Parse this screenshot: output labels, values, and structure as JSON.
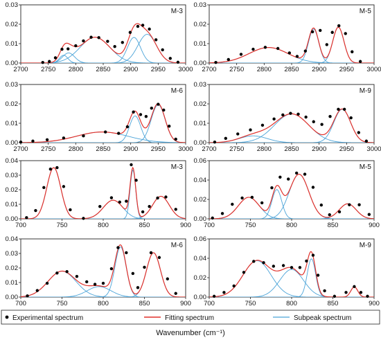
{
  "figure": {
    "xlabel": "Wavenumber (cm⁻¹)",
    "legend": {
      "experimental": "Experimental spectrum",
      "fitting": "Fitting spectrum",
      "subpeak": "Subpeak spectrum"
    },
    "colors": {
      "experimental": "#000000",
      "fitting": "#e0302a",
      "subpeak": "#4aa3d8",
      "axis": "#222222"
    }
  },
  "chart_data": [
    {
      "type": "line",
      "label": "M-3",
      "xlim": [
        2700,
        3000
      ],
      "ylim": [
        0,
        0.03
      ],
      "xticks": [
        "2700",
        "2750",
        "2800",
        "2850",
        "2900",
        "2950",
        "3000"
      ],
      "yticks": [
        "0.00",
        "0.01",
        "0.02",
        "0.03"
      ],
      "experimental_x": [
        2740,
        2752,
        2763,
        2775,
        2786,
        2800,
        2814,
        2828,
        2842,
        2858,
        2871,
        2885,
        2899,
        2913,
        2922,
        2934,
        2946,
        2958,
        2972,
        2986
      ],
      "experimental_y": [
        0.0003,
        0.0008,
        0.0027,
        0.0071,
        0.0073,
        0.0089,
        0.0114,
        0.0133,
        0.0131,
        0.0112,
        0.0085,
        0.0106,
        0.0158,
        0.0189,
        0.0195,
        0.0175,
        0.012,
        0.0068,
        0.0024,
        0.0004
      ],
      "subpeaks": [
        {
          "center": 2778,
          "amplitude": 0.004,
          "fwhm": 18
        },
        {
          "center": 2787,
          "amplitude": 0.0052,
          "fwhm": 26
        },
        {
          "center": 2835,
          "amplitude": 0.0133,
          "fwhm": 64
        },
        {
          "center": 2906,
          "amplitude": 0.0132,
          "fwhm": 28
        },
        {
          "center": 2930,
          "amplitude": 0.0148,
          "fwhm": 40
        }
      ]
    },
    {
      "type": "line",
      "label": "M-5",
      "xlim": [
        2700,
        3000
      ],
      "ylim": [
        0,
        0.03
      ],
      "xticks": [
        "2700",
        "2750",
        "2800",
        "2850",
        "2900",
        "2950",
        "3000"
      ],
      "yticks": [
        "0.00",
        "0.01",
        "0.02",
        "0.03"
      ],
      "experimental_x": [
        2712,
        2735,
        2758,
        2780,
        2802,
        2825,
        2846,
        2860,
        2875,
        2888,
        2902,
        2914,
        2924,
        2936,
        2948,
        2960,
        2975
      ],
      "experimental_y": [
        0.0003,
        0.0018,
        0.0045,
        0.0071,
        0.0081,
        0.0075,
        0.0052,
        0.0034,
        0.0062,
        0.0161,
        0.0168,
        0.0095,
        0.0158,
        0.0192,
        0.0152,
        0.0058,
        0.0008
      ],
      "subpeaks": [
        {
          "center": 2808,
          "amplitude": 0.008,
          "fwhm": 84
        },
        {
          "center": 2890,
          "amplitude": 0.0175,
          "fwhm": 22
        },
        {
          "center": 2935,
          "amplitude": 0.0185,
          "fwhm": 24
        }
      ]
    },
    {
      "type": "line",
      "label": "M-6",
      "xlim": [
        2700,
        3000
      ],
      "ylim": [
        0,
        0.03
      ],
      "xticks": [
        "2700",
        "2750",
        "2800",
        "2850",
        "2900",
        "2950",
        "3000"
      ],
      "yticks": [
        "0.00",
        "0.01",
        "0.02",
        "0.03"
      ],
      "experimental_x": [
        2700,
        2722,
        2748,
        2778,
        2814,
        2854,
        2878,
        2894,
        2905,
        2918,
        2928,
        2938,
        2950,
        2960,
        2970,
        2982
      ],
      "experimental_y": [
        0.0003,
        0.0008,
        0.0015,
        0.0024,
        0.0035,
        0.0055,
        0.0048,
        0.0082,
        0.0158,
        0.0145,
        0.0135,
        0.0178,
        0.0198,
        0.0168,
        0.0085,
        0.0018
      ],
      "subpeaks": [
        {
          "center": 2848,
          "amplitude": 0.0055,
          "fwhm": 110
        },
        {
          "center": 2908,
          "amplitude": 0.0138,
          "fwhm": 24
        },
        {
          "center": 2950,
          "amplitude": 0.0196,
          "fwhm": 30
        }
      ]
    },
    {
      "type": "line",
      "label": "M-9",
      "xlim": [
        2700,
        3000
      ],
      "ylim": [
        0,
        0.03
      ],
      "xticks": [
        "2700",
        "2750",
        "2800",
        "2850",
        "2900",
        "2950",
        "3000"
      ],
      "yticks": [
        "0.00",
        "0.01",
        "0.02",
        "0.03"
      ],
      "experimental_x": [
        2710,
        2730,
        2752,
        2775,
        2797,
        2818,
        2834,
        2848,
        2862,
        2876,
        2890,
        2905,
        2920,
        2935,
        2946,
        2958,
        2972,
        2986
      ],
      "experimental_y": [
        0.0003,
        0.0022,
        0.0045,
        0.0066,
        0.009,
        0.0122,
        0.0143,
        0.0151,
        0.0147,
        0.0132,
        0.0108,
        0.0094,
        0.0135,
        0.0172,
        0.0172,
        0.0128,
        0.0052,
        0.0008
      ],
      "subpeaks": [
        {
          "center": 2780,
          "amplitude": 0.0035,
          "fwhm": 60
        },
        {
          "center": 2850,
          "amplitude": 0.0148,
          "fwhm": 74
        },
        {
          "center": 2942,
          "amplitude": 0.0172,
          "fwhm": 36
        }
      ]
    },
    {
      "type": "line",
      "label": "M-3",
      "xlim": [
        700,
        900
      ],
      "ylim": [
        0,
        0.04
      ],
      "xticks": [
        "700",
        "750",
        "800",
        "850",
        "900"
      ],
      "yticks": [
        "0.00",
        "0.01",
        "0.02",
        "0.03",
        "0.04"
      ],
      "experimental_x": [
        707,
        718,
        728,
        736,
        744,
        752,
        760,
        776,
        796,
        810,
        820,
        828,
        834,
        840,
        848,
        856,
        866,
        876,
        888
      ],
      "experimental_y": [
        0.0008,
        0.0057,
        0.0215,
        0.0342,
        0.0352,
        0.0222,
        0.0062,
        0.0003,
        0.0085,
        0.0145,
        0.0115,
        0.0121,
        0.0372,
        0.0265,
        0.0048,
        0.0085,
        0.0143,
        0.015,
        0.0065
      ],
      "subpeaks": [
        {
          "center": 740,
          "amplitude": 0.0352,
          "fwhm": 20
        },
        {
          "center": 812,
          "amplitude": 0.0128,
          "fwhm": 28
        },
        {
          "center": 836,
          "amplitude": 0.0335,
          "fwhm": 8
        },
        {
          "center": 870,
          "amplitude": 0.0155,
          "fwhm": 24
        }
      ]
    },
    {
      "type": "line",
      "label": "M-5",
      "xlim": [
        700,
        900
      ],
      "ylim": [
        0,
        0.06
      ],
      "xticks": [
        "700",
        "750",
        "800",
        "850",
        "900"
      ],
      "yticks": [
        "0.00",
        "0.02",
        "0.04",
        "0.06"
      ],
      "experimental_x": [
        704,
        716,
        728,
        740,
        752,
        764,
        776,
        786,
        796,
        806,
        816,
        826,
        836,
        846,
        858,
        870,
        882,
        894
      ],
      "experimental_y": [
        0.0008,
        0.0055,
        0.015,
        0.0215,
        0.0222,
        0.0165,
        0.032,
        0.043,
        0.041,
        0.0472,
        0.046,
        0.0325,
        0.0142,
        0.0042,
        0.0072,
        0.0145,
        0.0145,
        0.0045
      ],
      "subpeaks": [
        {
          "center": 748,
          "amplitude": 0.0222,
          "fwhm": 30
        },
        {
          "center": 782,
          "amplitude": 0.0302,
          "fwhm": 14
        },
        {
          "center": 809,
          "amplitude": 0.046,
          "fwhm": 28
        },
        {
          "center": 868,
          "amplitude": 0.0155,
          "fwhm": 24
        }
      ]
    },
    {
      "type": "line",
      "label": "M-6",
      "xlim": [
        700,
        900
      ],
      "ylim": [
        0,
        0.04
      ],
      "xticks": [
        "700",
        "750",
        "800",
        "850",
        "900"
      ],
      "yticks": [
        "0.00",
        "0.01",
        "0.02",
        "0.03",
        "0.04"
      ],
      "experimental_x": [
        708,
        720,
        732,
        744,
        756,
        768,
        780,
        790,
        800,
        810,
        818,
        828,
        836,
        842,
        850,
        858,
        868,
        878,
        888
      ],
      "experimental_y": [
        0.0008,
        0.0045,
        0.0095,
        0.0165,
        0.0175,
        0.0142,
        0.0105,
        0.0088,
        0.0095,
        0.0195,
        0.034,
        0.0305,
        0.0162,
        0.0065,
        0.0205,
        0.0305,
        0.0272,
        0.0125,
        0.0025
      ],
      "subpeaks": [
        {
          "center": 750,
          "amplitude": 0.0178,
          "fwhm": 40
        },
        {
          "center": 795,
          "amplitude": 0.0072,
          "fwhm": 34
        },
        {
          "center": 821,
          "amplitude": 0.0345,
          "fwhm": 16
        },
        {
          "center": 861,
          "amplitude": 0.0305,
          "fwhm": 20
        }
      ]
    },
    {
      "type": "line",
      "label": "M-9",
      "xlim": [
        700,
        900
      ],
      "ylim": [
        0,
        0.06
      ],
      "xticks": [
        "700",
        "750",
        "800",
        "850",
        "900"
      ],
      "yticks": [
        "0.00",
        "0.02",
        "0.04",
        "0.06"
      ],
      "experimental_x": [
        706,
        718,
        730,
        742,
        754,
        766,
        778,
        790,
        800,
        810,
        818,
        826,
        832,
        840,
        852,
        866,
        876,
        884,
        892
      ],
      "experimental_y": [
        0.0008,
        0.0048,
        0.0115,
        0.0255,
        0.0368,
        0.0355,
        0.0318,
        0.0325,
        0.0305,
        0.0305,
        0.0372,
        0.0432,
        0.0225,
        0.0065,
        0.0008,
        0.0048,
        0.0108,
        0.0048,
        0.0008
      ],
      "subpeaks": [
        {
          "center": 758,
          "amplitude": 0.0375,
          "fwhm": 40
        },
        {
          "center": 800,
          "amplitude": 0.0285,
          "fwhm": 34
        },
        {
          "center": 824,
          "amplitude": 0.0395,
          "fwhm": 12
        },
        {
          "center": 876,
          "amplitude": 0.0105,
          "fwhm": 10
        }
      ]
    }
  ]
}
